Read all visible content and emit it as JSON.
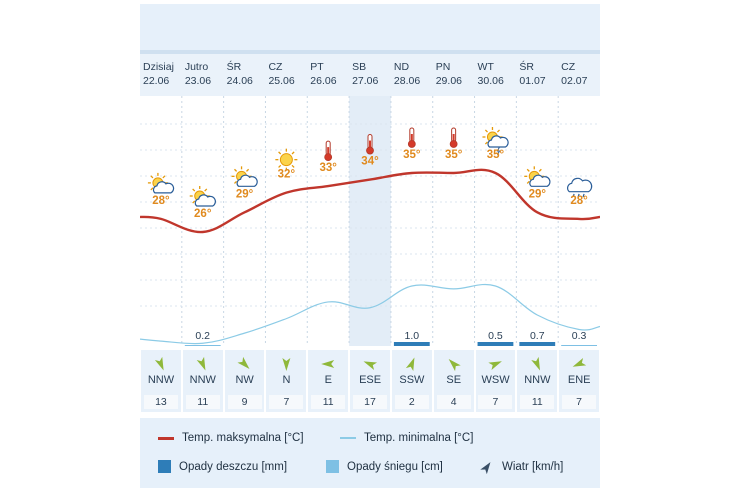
{
  "days": [
    {
      "name": "Dzisiaj",
      "date": "22.06",
      "icon": "partly-cloudy-sun-icon",
      "tmax": 28,
      "tmax_label": "28°",
      "tmin": 15.4,
      "rain": 0,
      "rain_label": "",
      "snow": 0,
      "snow_label": "",
      "wind_dir": "NNW",
      "wind_speed": "13",
      "wind_deg": 337
    },
    {
      "name": "Jutro",
      "date": "23.06",
      "icon": "partly-cloudy-sun-icon",
      "tmax": 26,
      "tmax_label": "26°",
      "tmin": 15.1,
      "rain": 0,
      "rain_label": "",
      "snow": 0.2,
      "snow_label": "0.2",
      "wind_dir": "NNW",
      "wind_speed": "11",
      "wind_deg": 337
    },
    {
      "name": "ŚR",
      "date": "24.06",
      "icon": "partly-cloudy-sun-icon",
      "tmax": 29,
      "tmax_label": "29°",
      "tmin": 16.5,
      "rain": 0,
      "rain_label": "",
      "snow": 0,
      "snow_label": "",
      "wind_dir": "NW",
      "wind_speed": "9",
      "wind_deg": 315
    },
    {
      "name": "CZ",
      "date": "25.06",
      "icon": "sun-icon",
      "tmax": 32,
      "tmax_label": "32°",
      "tmin": 18.5,
      "rain": 0,
      "rain_label": "",
      "snow": 0,
      "snow_label": "",
      "wind_dir": "N",
      "wind_speed": "7",
      "wind_deg": 0
    },
    {
      "name": "PT",
      "date": "26.06",
      "icon": "thermometer-icon",
      "tmax": 33,
      "tmax_label": "33°",
      "tmin": 20.8,
      "rain": 0,
      "rain_label": "",
      "snow": 0,
      "snow_label": "",
      "wind_dir": "E",
      "wind_speed": "11",
      "wind_deg": 90
    },
    {
      "name": "SB",
      "date": "27.06",
      "icon": "thermometer-icon",
      "tmax": 34,
      "tmax_label": "34°",
      "tmin": 20,
      "rain": 0,
      "rain_label": "",
      "snow": 0,
      "snow_label": "",
      "wind_dir": "ESE",
      "wind_speed": "17",
      "wind_deg": 112
    },
    {
      "name": "ND",
      "date": "28.06",
      "icon": "thermometer-icon",
      "tmax": 35,
      "tmax_label": "35°",
      "tmin": 23,
      "rain": 1.0,
      "rain_label": "1.0",
      "snow": 0,
      "snow_label": "",
      "wind_dir": "SSW",
      "wind_speed": "2",
      "wind_deg": 202
    },
    {
      "name": "PN",
      "date": "29.06",
      "icon": "thermometer-icon",
      "tmax": 35,
      "tmax_label": "35°",
      "tmin": 22.6,
      "rain": 0,
      "rain_label": "",
      "snow": 0,
      "snow_label": "",
      "wind_dir": "SE",
      "wind_speed": "4",
      "wind_deg": 135
    },
    {
      "name": "WT",
      "date": "30.06",
      "icon": "thunderstorm-icon",
      "tmax": 35,
      "tmax_label": "35°",
      "tmin": 23,
      "rain": 0.5,
      "rain_label": "0.5",
      "snow": 0,
      "snow_label": "",
      "wind_dir": "WSW",
      "wind_speed": "7",
      "wind_deg": 247
    },
    {
      "name": "ŚR",
      "date": "01.07",
      "icon": "partly-cloudy-sun-icon",
      "tmax": 29,
      "tmax_label": "29°",
      "tmin": 19,
      "rain": 0.7,
      "rain_label": "0.7",
      "snow": 0,
      "snow_label": "",
      "wind_dir": "NNW",
      "wind_speed": "11",
      "wind_deg": 337
    },
    {
      "name": "CZ",
      "date": "02.07",
      "icon": "rain-cloud-icon",
      "tmax": 28,
      "tmax_label": "28°",
      "tmin": 17,
      "rain": 0,
      "rain_label": "",
      "snow": 0.3,
      "snow_label": "0.3",
      "wind_dir": "ENE",
      "wind_speed": "7",
      "wind_deg": 67
    }
  ],
  "legend": {
    "tmax": "Temp. maksymalna [°C]",
    "tmin": "Temp. minimalna [°C]",
    "rain": "Opady deszczu [mm]",
    "snow": "Opady śniegu [cm]",
    "wind": "Wiatr [km/h]"
  },
  "colors": {
    "tmax": "#c0362c",
    "tmin": "#8ccbe6",
    "rain": "#2e7db8",
    "snow": "#7ec0e4",
    "label": "#e08a1e",
    "highlight": "#e3edf7"
  },
  "chart_data": {
    "type": "line",
    "categories": [
      "22.06",
      "23.06",
      "24.06",
      "25.06",
      "26.06",
      "27.06",
      "28.06",
      "29.06",
      "30.06",
      "01.07",
      "02.07"
    ],
    "series": [
      {
        "name": "Temp. maksymalna [°C]",
        "values": [
          28,
          26,
          29,
          32,
          33,
          34,
          35,
          35,
          35,
          29,
          28
        ]
      },
      {
        "name": "Temp. minimalna [°C]",
        "values": [
          15.4,
          15.1,
          16.5,
          18.5,
          20.8,
          20,
          23,
          22.6,
          23,
          19,
          17
        ]
      },
      {
        "name": "Opady deszczu [mm]",
        "values": [
          0,
          0,
          0,
          0,
          0,
          0,
          1.0,
          0,
          0.5,
          0.7,
          0
        ]
      },
      {
        "name": "Opady śniegu [cm]",
        "values": [
          0,
          0.2,
          0,
          0,
          0,
          0,
          0,
          0,
          0,
          0,
          0.3
        ]
      }
    ],
    "grid": true,
    "legend_position": "bottom"
  }
}
